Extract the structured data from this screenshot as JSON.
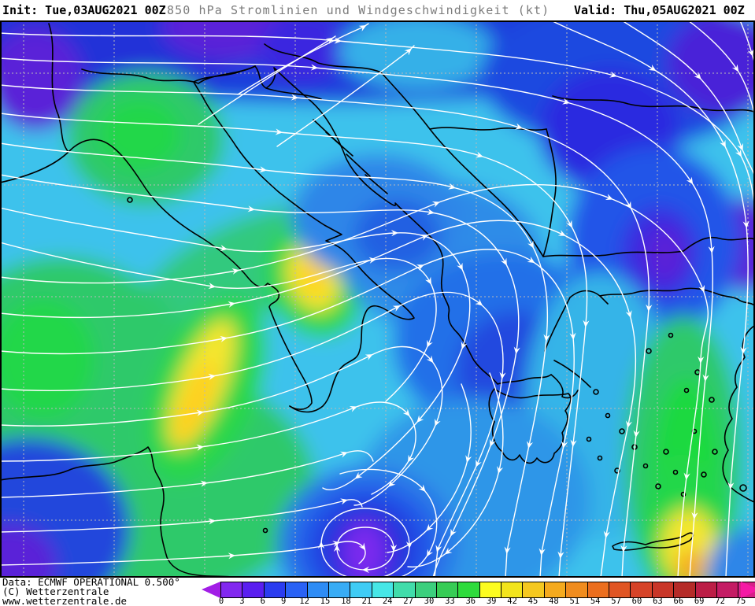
{
  "header": {
    "init": "Init: Tue,03AUG2021 00Z",
    "title": "850 hPa Stromlinien und Windgeschwindigkeit (kt)",
    "valid": "Valid: Thu,05AUG2021 00Z"
  },
  "attribution": {
    "data_source": "Data: ECMWF OPERATIONAL 0.500°",
    "copyright": "(C) Wetterzentrale",
    "website": "www.wetterzentrale.de"
  },
  "colorbar": {
    "unit": "kt",
    "tick_labels": [
      "0",
      "3",
      "6",
      "9",
      "12",
      "15",
      "18",
      "21",
      "24",
      "27",
      "30",
      "33",
      "36",
      "39",
      "42",
      "45",
      "48",
      "51",
      "54",
      "57",
      "60",
      "63",
      "66",
      "69",
      "72",
      "75"
    ],
    "segment_colors": [
      "#8228F0",
      "#5A1EF0",
      "#2B3CF0",
      "#2A62F5",
      "#2E8CF5",
      "#38ACF5",
      "#3FCCF5",
      "#46E6E6",
      "#41DCAA",
      "#3CCF7D",
      "#37CC55",
      "#2EDB3C",
      "#FCFC20",
      "#F2E41C",
      "#F5C820",
      "#F5AA1E",
      "#F08C1E",
      "#EB6E1E",
      "#E05523",
      "#D64328",
      "#C93628",
      "#B52B28",
      "#BC1E46",
      "#C41C64",
      "#D61E87"
    ],
    "left_arrow_color": "#A21EE6",
    "right_arrow_color": "#F519A5"
  },
  "map": {
    "streamline_color": "#ffffff",
    "coastline_color": "#000000",
    "gridline_color": "#b9b9b9"
  }
}
